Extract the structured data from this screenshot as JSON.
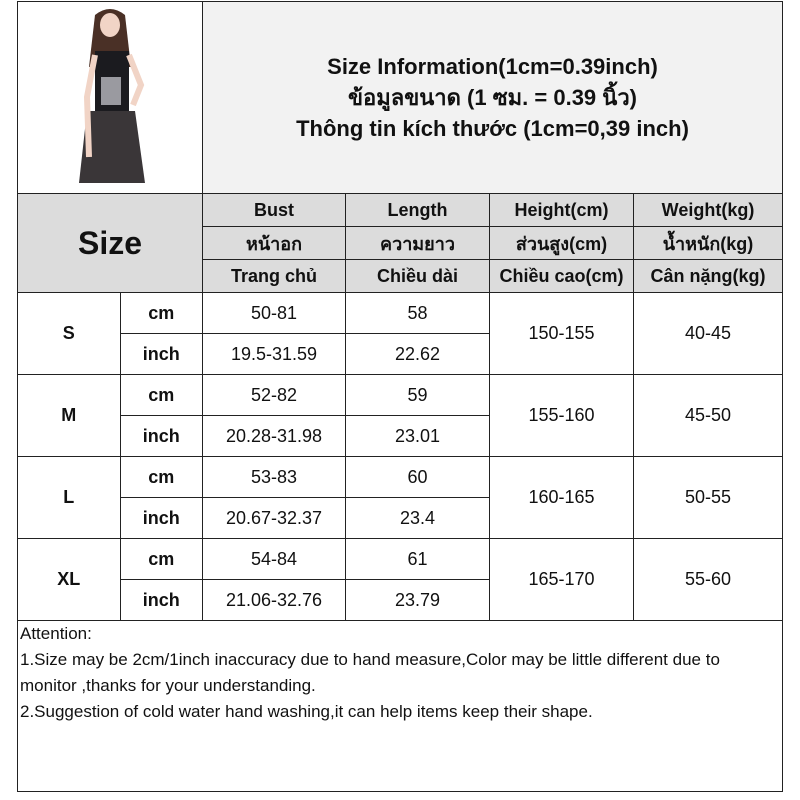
{
  "title": {
    "line1": "Size Information(1cm=0.39inch)",
    "line2": "ข้อมูลขนาด (1 ซม. = 0.39 นิ้ว)",
    "line3": "Thông tin kích thước (1cm=0,39 inch)"
  },
  "size_label": "Size",
  "headers": [
    [
      "Bust",
      "หน้าอก",
      "Trang chủ"
    ],
    [
      "Length",
      "ความยาว",
      "Chiều dài"
    ],
    [
      "Height(cm)",
      "ส่วนสูง(cm)",
      "Chiều cao(cm)"
    ],
    [
      "Weight(kg)",
      "น้ำหนัก(kg)",
      "Cân nặng(kg)"
    ]
  ],
  "rows": [
    {
      "size": "S",
      "cm": {
        "unit": "cm",
        "bust": "50-81",
        "length": "58"
      },
      "inch": {
        "unit": "inch",
        "bust": "19.5-31.59",
        "length": "22.62"
      },
      "height": "150-155",
      "weight": "40-45"
    },
    {
      "size": "M",
      "cm": {
        "unit": "cm",
        "bust": "52-82",
        "length": "59"
      },
      "inch": {
        "unit": "inch",
        "bust": "20.28-31.98",
        "length": "23.01"
      },
      "height": "155-160",
      "weight": "45-50"
    },
    {
      "size": "L",
      "cm": {
        "unit": "cm",
        "bust": "53-83",
        "length": "60"
      },
      "inch": {
        "unit": "inch",
        "bust": "20.67-32.37",
        "length": "23.4"
      },
      "height": "160-165",
      "weight": "50-55"
    },
    {
      "size": "XL",
      "cm": {
        "unit": "cm",
        "bust": "54-84",
        "length": "61"
      },
      "inch": {
        "unit": "inch",
        "bust": "21.06-32.76",
        "length": "23.79"
      },
      "height": "165-170",
      "weight": "55-60"
    }
  ],
  "attention": {
    "heading": "Attention:",
    "note1": "1.Size may be 2cm/1inch inaccuracy due to hand measure,Color may be little different due to monitor ,thanks for your understanding.",
    "note2": "2.Suggestion of cold water hand washing,it can help items keep their shape."
  }
}
